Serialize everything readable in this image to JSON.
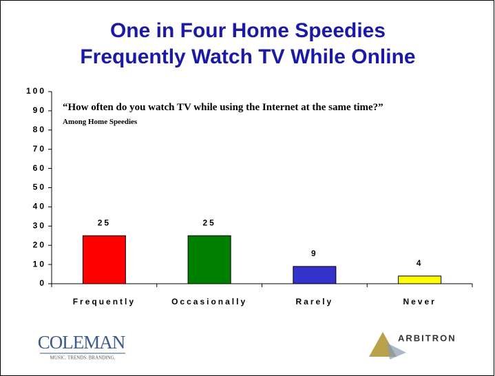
{
  "chart_data": {
    "type": "bar",
    "title": [
      "One in Four Home Speedies",
      "Frequently Watch TV While Online"
    ],
    "annotation": {
      "text": "“How often do you watch TV while using the Internet at the same time?”",
      "note": "Among Home Speedies"
    },
    "categories": [
      "Frequently",
      "Occasionally",
      "Rarely",
      "Never"
    ],
    "values": [
      25,
      25,
      9,
      4
    ],
    "colors": [
      "#ff0000",
      "#008000",
      "#3333cc",
      "#ffff00"
    ],
    "ylim": [
      0,
      100
    ],
    "yticks": [
      0,
      10,
      20,
      30,
      40,
      50,
      60,
      70,
      80,
      90,
      100
    ],
    "grid": false
  },
  "logos": {
    "left": "COLEMAN",
    "left_tagline": "MUSIC. TRENDS. BRANDING.",
    "right": "ARBITRON"
  }
}
